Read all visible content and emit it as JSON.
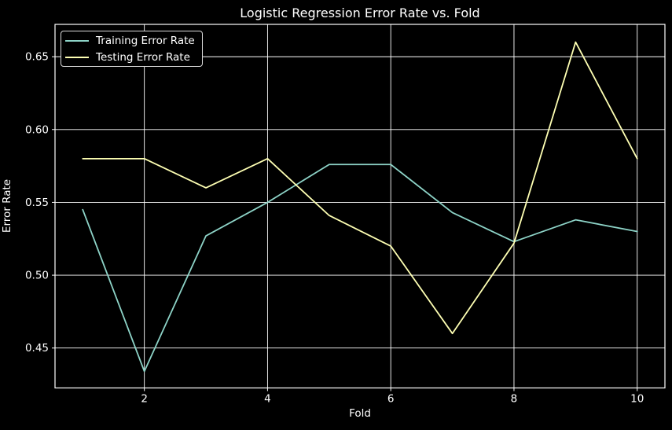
{
  "chart_data": {
    "type": "line",
    "title": "Logistic Regression Error Rate vs. Fold",
    "xlabel": "Fold",
    "ylabel": "Error Rate",
    "x": [
      1,
      2,
      3,
      4,
      5,
      6,
      7,
      8,
      9,
      10
    ],
    "series": [
      {
        "name": "Training Error Rate",
        "color": "#8dd3c7",
        "values": [
          0.545,
          0.434,
          0.527,
          0.55,
          0.576,
          0.576,
          0.543,
          0.523,
          0.538,
          0.53
        ]
      },
      {
        "name": "Testing Error Rate",
        "color": "#feffb3",
        "values": [
          0.58,
          0.58,
          0.56,
          0.58,
          0.541,
          0.52,
          0.46,
          0.522,
          0.66,
          0.58
        ]
      }
    ],
    "x_ticks": [
      {
        "value": 2,
        "label": "2"
      },
      {
        "value": 4,
        "label": "4"
      },
      {
        "value": 6,
        "label": "6"
      },
      {
        "value": 8,
        "label": "8"
      },
      {
        "value": 10,
        "label": "10"
      }
    ],
    "y_ticks": [
      {
        "value": 0.45,
        "label": "0.45"
      },
      {
        "value": 0.5,
        "label": "0.50"
      },
      {
        "value": 0.55,
        "label": "0.55"
      },
      {
        "value": 0.6,
        "label": "0.60"
      },
      {
        "value": 0.65,
        "label": "0.65"
      }
    ],
    "xlim": [
      0.55,
      10.45
    ],
    "ylim": [
      0.4226,
      0.6722
    ],
    "grid": true,
    "legend_position": "upper-left",
    "background_color": "#000000",
    "text_color": "#ffffff",
    "grid_color": "#ffffff",
    "spine_color": "#ffffff",
    "legend_border_color": "#d9d9d9"
  }
}
